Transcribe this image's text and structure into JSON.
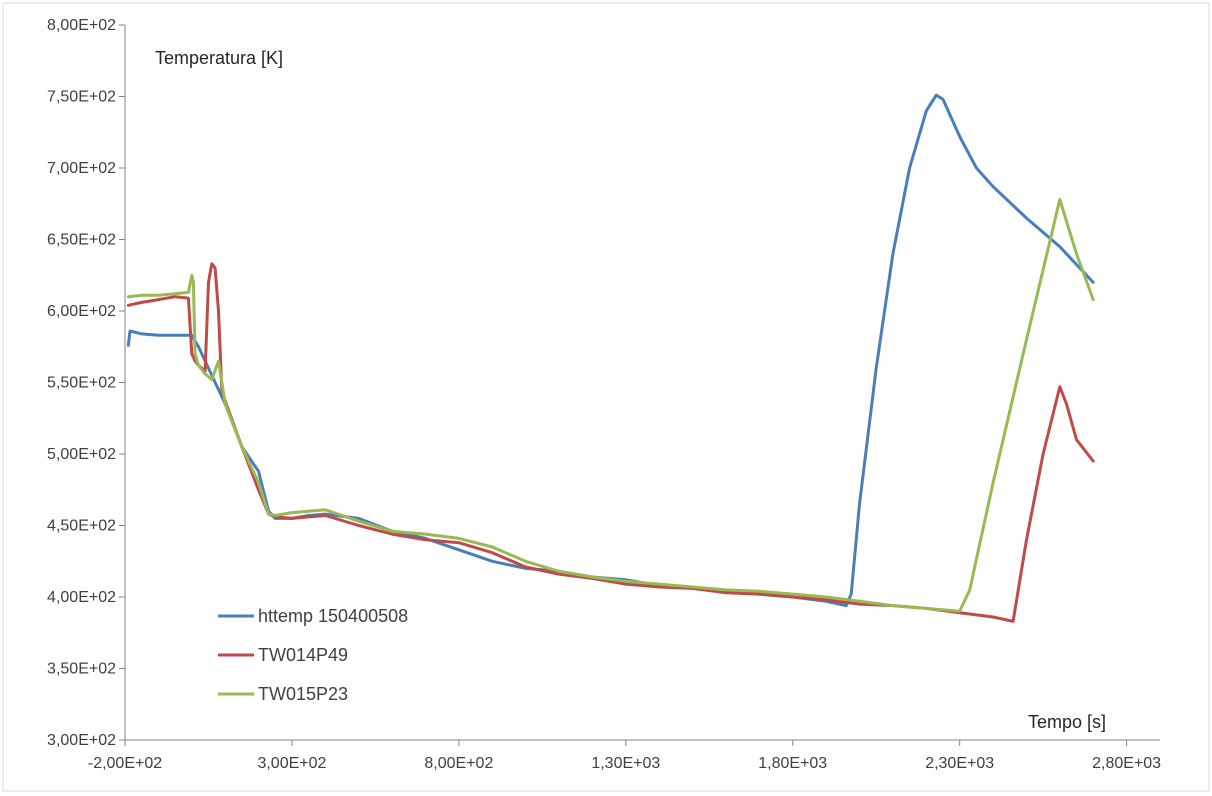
{
  "chart_data": {
    "type": "line",
    "title": "",
    "xlabel": "Tempo [s]",
    "ylabel": "Temperatura [K]",
    "xlim": [
      -200,
      2900
    ],
    "ylim": [
      300,
      800
    ],
    "x_ticks": [
      -200,
      300,
      800,
      1300,
      1800,
      2300,
      2800
    ],
    "x_tick_labels": [
      "-2,00E+02",
      "3,00E+02",
      "8,00E+02",
      "1,30E+03",
      "1,80E+03",
      "2,30E+03",
      "2,80E+03"
    ],
    "y_ticks": [
      300,
      350,
      400,
      450,
      500,
      550,
      600,
      650,
      700,
      750,
      800
    ],
    "y_tick_labels": [
      "3,00E+02",
      "3,50E+02",
      "4,00E+02",
      "4,50E+02",
      "5,00E+02",
      "5,50E+02",
      "6,00E+02",
      "6,50E+02",
      "7,00E+02",
      "7,50E+02",
      "8,00E+02"
    ],
    "grid": false,
    "legend_position": "lower-left",
    "series": [
      {
        "name": "httemp 150400508",
        "color": "#4a7ebb",
        "x": [
          -190,
          -185,
          -150,
          -100,
          -50,
          -10,
          0,
          20,
          50,
          100,
          150,
          200,
          230,
          250,
          300,
          350,
          400,
          500,
          600,
          700,
          800,
          900,
          1000,
          1100,
          1200,
          1300,
          1400,
          1500,
          1600,
          1700,
          1800,
          1900,
          1960,
          1975,
          2000,
          2050,
          2100,
          2150,
          2200,
          2230,
          2250,
          2300,
          2350,
          2400,
          2500,
          2600,
          2700
        ],
        "y": [
          576,
          586,
          584,
          583,
          583,
          583,
          583,
          575,
          560,
          535,
          505,
          488,
          460,
          455,
          455,
          457,
          458,
          455,
          446,
          441,
          433,
          425,
          420,
          418,
          414,
          412,
          408,
          406,
          404,
          402,
          400,
          397,
          394,
          402,
          465,
          560,
          640,
          700,
          740,
          751,
          748,
          722,
          700,
          687,
          665,
          645,
          620
        ]
      },
      {
        "name": "TW014P49",
        "color": "#be4b48",
        "x": [
          -190,
          -150,
          -100,
          -50,
          -10,
          0,
          10,
          20,
          30,
          40,
          50,
          60,
          70,
          80,
          90,
          100,
          150,
          200,
          230,
          250,
          300,
          350,
          400,
          500,
          600,
          700,
          800,
          900,
          1000,
          1100,
          1200,
          1300,
          1400,
          1500,
          1600,
          1700,
          1800,
          1900,
          2000,
          2100,
          2200,
          2300,
          2400,
          2460,
          2500,
          2550,
          2600,
          2620,
          2650,
          2700
        ],
        "y": [
          604,
          606,
          608,
          610,
          609,
          570,
          565,
          562,
          560,
          558,
          620,
          633,
          630,
          600,
          545,
          537,
          505,
          475,
          458,
          456,
          455,
          456,
          457,
          450,
          444,
          440,
          438,
          431,
          421,
          416,
          413,
          409,
          407,
          406,
          403,
          402,
          400,
          398,
          395,
          394,
          392,
          389,
          386,
          383,
          440,
          500,
          547,
          535,
          510,
          495
        ]
      },
      {
        "name": "TW015P23",
        "color": "#98b954",
        "x": [
          -190,
          -150,
          -100,
          -50,
          -10,
          0,
          5,
          10,
          20,
          40,
          60,
          80,
          100,
          150,
          200,
          230,
          250,
          300,
          350,
          400,
          500,
          600,
          700,
          800,
          900,
          1000,
          1100,
          1200,
          1300,
          1400,
          1500,
          1600,
          1700,
          1800,
          1900,
          2000,
          2100,
          2200,
          2300,
          2330,
          2400,
          2500,
          2600,
          2650,
          2700
        ],
        "y": [
          610,
          611,
          611,
          612,
          613,
          625,
          620,
          570,
          562,
          556,
          552,
          565,
          535,
          505,
          480,
          458,
          457,
          459,
          460,
          461,
          453,
          446,
          444,
          441,
          435,
          425,
          418,
          414,
          411,
          409,
          407,
          405,
          404,
          402,
          400,
          397,
          394,
          392,
          390,
          405,
          480,
          580,
          678,
          640,
          608
        ]
      }
    ]
  }
}
